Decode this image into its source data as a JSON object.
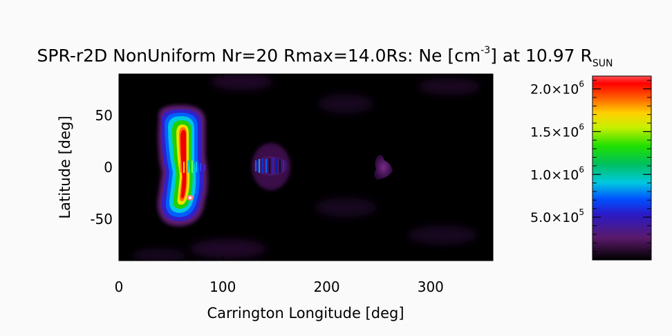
{
  "chart_data": {
    "type": "heatmap",
    "title_parts": {
      "main": "SPR-r2D NonUniform Nr=20 Rmax=14.0Rs: Ne [cm",
      "sup": "-3",
      "after": "] at 10.97 R",
      "sub": "SUN"
    },
    "xlabel": "Carrington Longitude [deg]",
    "ylabel": "Latitude [deg]",
    "xlim": [
      0,
      360
    ],
    "ylim": [
      -90,
      90
    ],
    "xticks": [
      0,
      100,
      200,
      300
    ],
    "yticks": [
      50,
      0,
      -50
    ],
    "colorbar": {
      "range": [
        0,
        2150000
      ],
      "ticks": [
        {
          "value": 500000,
          "mantissa": "5.0",
          "exp": "5"
        },
        {
          "value": 1000000,
          "mantissa": "1.0",
          "exp": "6"
        },
        {
          "value": 1500000,
          "mantissa": "1.5",
          "exp": "6"
        },
        {
          "value": 2000000,
          "mantissa": "2.0",
          "exp": "6"
        }
      ]
    },
    "features": [
      {
        "label": "main streamer",
        "lon": 68,
        "lat": 0,
        "peak": 2100000
      },
      {
        "label": "streak feature",
        "lon": 150,
        "lat": 4,
        "peak": 700000
      },
      {
        "label": "small blob",
        "lon": 255,
        "lat": 5,
        "peak": 200000
      }
    ]
  }
}
